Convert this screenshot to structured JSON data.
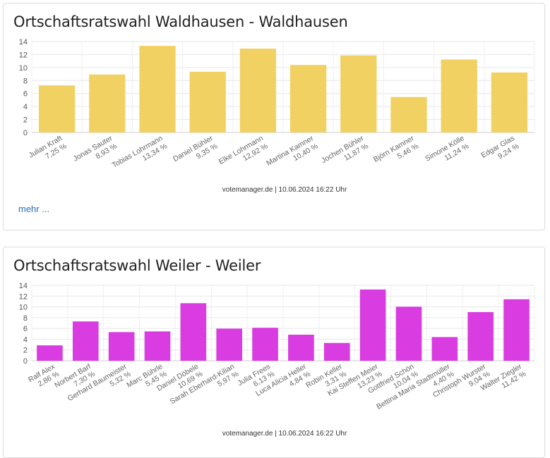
{
  "cards": [
    {
      "title": "Ortschaftsratswahl Waldhausen - Waldhausen",
      "more_label": "mehr ...",
      "credit": "votemanager.de | 10.06.2024 16:22 Uhr"
    },
    {
      "title": "Ortschaftsratswahl Weiler - Weiler",
      "credit": "votemanager.de | 10.06.2024 16:22 Uhr"
    }
  ],
  "chart_data": [
    {
      "type": "bar",
      "title": "Ortschaftsratswahl Waldhausen - Waldhausen",
      "categories": [
        "Julian Kraft",
        "Jonas Sauter",
        "Tobias Lohrmann",
        "Daniel Bühler",
        "Elke Lohrmann",
        "Martina Kamner",
        "Jochen Bühler",
        "Björn Kamner",
        "Simone Kölle",
        "Edgar Glas"
      ],
      "value_labels": [
        "7,25 %",
        "8,93 %",
        "13,34 %",
        "9,35 %",
        "12,92 %",
        "10,40 %",
        "11,87 %",
        "5,46 %",
        "11,24 %",
        "9,24 %"
      ],
      "values": [
        7.25,
        8.93,
        13.34,
        9.35,
        12.92,
        10.4,
        11.87,
        5.46,
        11.24,
        9.24
      ],
      "ylim": [
        0,
        14
      ],
      "yticks": [
        "0",
        "2",
        "4",
        "6",
        "8",
        "10",
        "12",
        "14"
      ],
      "grid": true,
      "color": "#f2d163"
    },
    {
      "type": "bar",
      "title": "Ortschaftsratswahl Weiler - Weiler",
      "categories": [
        "Ralf Alex",
        "Norbert Barf",
        "Gerhard Baumeister",
        "Marc Bührle",
        "Daniel Döbele",
        "Sarah Eberhard-Kilian",
        "Julia Frees",
        "Luca Alicia Heller",
        "Robin Keller",
        "Kai Steffen Meier",
        "Gottfried Schön",
        "Bettina Maria Stadtmüller",
        "Christoph Wurster",
        "Walter Ziegler"
      ],
      "value_labels": [
        "2,86 %",
        "7,30 %",
        "5,32 %",
        "5,45 %",
        "10,69 %",
        "5,97 %",
        "6,13 %",
        "4,84 %",
        "3,31 %",
        "13,23 %",
        "10,04 %",
        "4,40 %",
        "9,04 %",
        "11,42 %"
      ],
      "values": [
        2.86,
        7.3,
        5.32,
        5.45,
        10.69,
        5.97,
        6.13,
        4.84,
        3.31,
        13.23,
        10.04,
        4.4,
        9.04,
        11.42
      ],
      "ylim": [
        0,
        14
      ],
      "yticks": [
        "0",
        "2",
        "4",
        "6",
        "8",
        "10",
        "12",
        "14"
      ],
      "grid": true,
      "color": "#d93ce0"
    }
  ]
}
